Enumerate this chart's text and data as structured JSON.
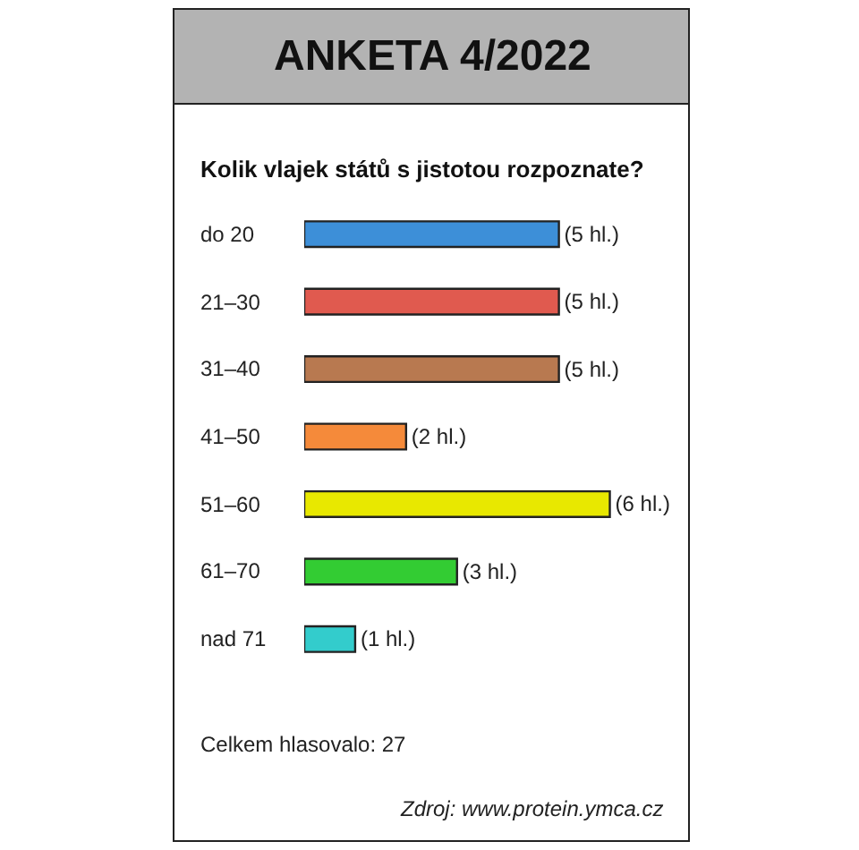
{
  "chart_data": {
    "type": "bar",
    "orientation": "horizontal",
    "title": "ANKETA 4/2022",
    "subtitle": "Kolik vlajek států s jistotou rozpoznate?",
    "categories": [
      "do 20",
      "21–30",
      "31–40",
      "41–50",
      "51–60",
      "61–70",
      "nad 71"
    ],
    "values": [
      5,
      5,
      5,
      2,
      6,
      3,
      1
    ],
    "colors": [
      "#3d8fd8",
      "#e05a4f",
      "#b87950",
      "#f58a3a",
      "#e8e800",
      "#33cc33",
      "#33cccc"
    ],
    "value_labels": [
      "(5 hl.)",
      "(5 hl.)",
      "(5 hl.)",
      "(2 hl.)",
      "(6 hl.)",
      "(3 hl.)",
      "(1 hl.)"
    ],
    "annotations": [
      "Celkem hlasovalo: 27",
      "Zdroj: www.protein.ymca.cz"
    ],
    "legend": false
  }
}
